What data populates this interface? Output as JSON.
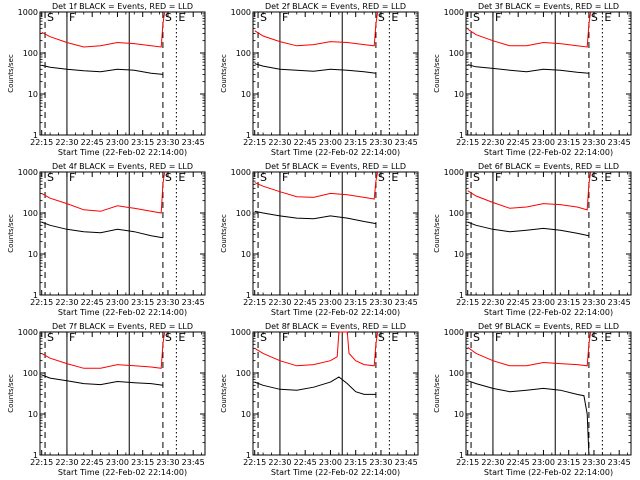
{
  "colors": {
    "background": "#ffffff",
    "events": "#000000",
    "lld": "#ff0000",
    "axes": "#000000"
  },
  "chart_data": [
    {
      "type": "line",
      "title": "Det 1f BLACK = Events, RED = LLD",
      "xlabel": "Start Time (22-Feb-02 22:14:00)",
      "ylabel": "Counts/sec",
      "yscale": "log",
      "ylim": [
        1,
        1000
      ],
      "xlim": [
        "22:14:00",
        "23:52:00"
      ],
      "x_ticks": [
        "22:15",
        "22:30",
        "22:45",
        "23:00",
        "23:15",
        "23:30",
        "23:45"
      ],
      "y_ticks": [
        "1",
        "10",
        "100",
        "1000"
      ],
      "markers": [
        {
          "label": "S",
          "time": "22:17",
          "style": "dashed"
        },
        {
          "label": "F",
          "time": "22:30",
          "style": "solid"
        },
        {
          "label": "",
          "time": "23:07",
          "style": "solid"
        },
        {
          "label": "S",
          "time": "23:27",
          "style": "dashed"
        },
        {
          "label": "E",
          "time": "23:35",
          "style": "dotted"
        }
      ],
      "series": [
        {
          "name": "BLACK = Events",
          "color": "#000000",
          "x": [
            "22:15",
            "22:20",
            "22:30",
            "22:40",
            "22:50",
            "23:00",
            "23:10",
            "23:20",
            "23:27"
          ],
          "y": [
            50,
            45,
            40,
            37,
            35,
            40,
            38,
            32,
            30
          ]
        },
        {
          "name": "RED = LLD",
          "color": "#ff0000",
          "x": [
            "22:15",
            "22:20",
            "22:30",
            "22:40",
            "22:50",
            "23:00",
            "23:10",
            "23:20",
            "23:26",
            "23:27",
            "23:28"
          ],
          "y": [
            320,
            250,
            180,
            140,
            150,
            180,
            170,
            150,
            140,
            500,
            1000
          ]
        }
      ]
    },
    {
      "type": "line",
      "title": "Det 2f BLACK = Events, RED = LLD",
      "xlabel": "Start Time (22-Feb-02 22:14:00)",
      "ylabel": "Counts/sec",
      "yscale": "log",
      "ylim": [
        1,
        1000
      ],
      "xlim": [
        "22:14:00",
        "23:52:00"
      ],
      "x_ticks": [
        "22:15",
        "22:30",
        "22:45",
        "23:00",
        "23:15",
        "23:30",
        "23:45"
      ],
      "y_ticks": [
        "1",
        "10",
        "100",
        "1000"
      ],
      "markers": [
        {
          "label": "S",
          "time": "22:17",
          "style": "dashed"
        },
        {
          "label": "F",
          "time": "22:30",
          "style": "solid"
        },
        {
          "label": "",
          "time": "23:07",
          "style": "solid"
        },
        {
          "label": "S",
          "time": "23:27",
          "style": "dashed"
        },
        {
          "label": "E",
          "time": "23:35",
          "style": "dotted"
        }
      ],
      "series": [
        {
          "name": "BLACK = Events",
          "color": "#000000",
          "x": [
            "22:15",
            "22:20",
            "22:30",
            "22:40",
            "22:50",
            "23:00",
            "23:10",
            "23:20",
            "23:27"
          ],
          "y": [
            55,
            48,
            40,
            38,
            36,
            40,
            38,
            35,
            32
          ]
        },
        {
          "name": "RED = LLD",
          "color": "#ff0000",
          "x": [
            "22:15",
            "22:20",
            "22:30",
            "22:40",
            "22:50",
            "23:00",
            "23:10",
            "23:20",
            "23:26",
            "23:27",
            "23:28"
          ],
          "y": [
            350,
            260,
            190,
            150,
            160,
            190,
            180,
            160,
            150,
            500,
            1000
          ]
        }
      ]
    },
    {
      "type": "line",
      "title": "Det 3f BLACK = Events, RED = LLD",
      "xlabel": "Start Time (22-Feb-02 22:14:00)",
      "ylabel": "Counts/sec",
      "yscale": "log",
      "ylim": [
        1,
        1000
      ],
      "xlim": [
        "22:14:00",
        "23:52:00"
      ],
      "x_ticks": [
        "22:15",
        "22:30",
        "22:45",
        "23:00",
        "23:15",
        "23:30",
        "23:45"
      ],
      "y_ticks": [
        "1",
        "10",
        "100",
        "1000"
      ],
      "markers": [
        {
          "label": "S",
          "time": "22:17",
          "style": "dashed"
        },
        {
          "label": "F",
          "time": "22:30",
          "style": "solid"
        },
        {
          "label": "",
          "time": "23:07",
          "style": "solid"
        },
        {
          "label": "S",
          "time": "23:27",
          "style": "dashed"
        },
        {
          "label": "E",
          "time": "23:35",
          "style": "dotted"
        }
      ],
      "series": [
        {
          "name": "BLACK = Events",
          "color": "#000000",
          "x": [
            "22:15",
            "22:20",
            "22:30",
            "22:40",
            "22:50",
            "23:00",
            "23:10",
            "23:20",
            "23:27"
          ],
          "y": [
            52,
            46,
            42,
            38,
            35,
            40,
            38,
            34,
            32
          ]
        },
        {
          "name": "RED = LLD",
          "color": "#ff0000",
          "x": [
            "22:15",
            "22:20",
            "22:30",
            "22:40",
            "22:50",
            "23:00",
            "23:10",
            "23:20",
            "23:26",
            "23:27",
            "23:28"
          ],
          "y": [
            380,
            280,
            200,
            150,
            150,
            180,
            170,
            150,
            140,
            500,
            1000
          ]
        }
      ]
    },
    {
      "type": "line",
      "title": "Det 4f BLACK = Events, RED = LLD",
      "xlabel": "Start Time (22-Feb-02 22:14:00)",
      "ylabel": "Counts/sec",
      "yscale": "log",
      "ylim": [
        1,
        1000
      ],
      "xlim": [
        "22:14:00",
        "23:52:00"
      ],
      "x_ticks": [
        "22:15",
        "22:30",
        "22:45",
        "23:00",
        "23:15",
        "23:30",
        "23:45"
      ],
      "y_ticks": [
        "1",
        "10",
        "100",
        "1000"
      ],
      "markers": [
        {
          "label": "S",
          "time": "22:17",
          "style": "dashed"
        },
        {
          "label": "F",
          "time": "22:30",
          "style": "solid"
        },
        {
          "label": "",
          "time": "23:07",
          "style": "solid"
        },
        {
          "label": "S",
          "time": "23:27",
          "style": "dashed"
        },
        {
          "label": "E",
          "time": "23:35",
          "style": "dotted"
        }
      ],
      "series": [
        {
          "name": "BLACK = Events",
          "color": "#000000",
          "x": [
            "22:15",
            "22:20",
            "22:30",
            "22:40",
            "22:50",
            "23:00",
            "23:10",
            "23:20",
            "23:27"
          ],
          "y": [
            60,
            50,
            40,
            35,
            33,
            40,
            35,
            28,
            25
          ]
        },
        {
          "name": "RED = LLD",
          "color": "#ff0000",
          "x": [
            "22:15",
            "22:20",
            "22:30",
            "22:40",
            "22:50",
            "23:00",
            "23:10",
            "23:20",
            "23:26",
            "23:27",
            "23:28"
          ],
          "y": [
            300,
            230,
            170,
            120,
            110,
            150,
            130,
            110,
            100,
            500,
            1000
          ]
        }
      ]
    },
    {
      "type": "line",
      "title": "Det 5f BLACK = Events, RED = LLD",
      "xlabel": "Start Time (22-Feb-02 22:14:00)",
      "ylabel": "Counts/sec",
      "yscale": "log",
      "ylim": [
        1,
        1000
      ],
      "xlim": [
        "22:14:00",
        "23:52:00"
      ],
      "x_ticks": [
        "22:15",
        "22:30",
        "22:45",
        "23:00",
        "23:15",
        "23:30",
        "23:45"
      ],
      "y_ticks": [
        "1",
        "10",
        "100",
        "1000"
      ],
      "markers": [
        {
          "label": "S",
          "time": "22:17",
          "style": "dashed"
        },
        {
          "label": "F",
          "time": "22:30",
          "style": "solid"
        },
        {
          "label": "",
          "time": "23:07",
          "style": "solid"
        },
        {
          "label": "S",
          "time": "23:27",
          "style": "dashed"
        },
        {
          "label": "E",
          "time": "23:35",
          "style": "dotted"
        }
      ],
      "series": [
        {
          "name": "BLACK = Events",
          "color": "#000000",
          "x": [
            "22:15",
            "22:20",
            "22:30",
            "22:40",
            "22:50",
            "23:00",
            "23:10",
            "23:20",
            "23:27"
          ],
          "y": [
            110,
            100,
            85,
            75,
            72,
            85,
            75,
            62,
            55
          ]
        },
        {
          "name": "RED = LLD",
          "color": "#ff0000",
          "x": [
            "22:15",
            "22:20",
            "22:30",
            "22:40",
            "22:50",
            "23:00",
            "23:10",
            "23:20",
            "23:26",
            "23:27",
            "23:28"
          ],
          "y": [
            550,
            450,
            330,
            250,
            240,
            300,
            280,
            240,
            220,
            600,
            1000
          ]
        }
      ]
    },
    {
      "type": "line",
      "title": "Det 6f BLACK = Events, RED = LLD",
      "xlabel": "Start Time (22-Feb-02 22:14:00)",
      "ylabel": "Counts/sec",
      "yscale": "log",
      "ylim": [
        1,
        1000
      ],
      "xlim": [
        "22:14:00",
        "23:52:00"
      ],
      "x_ticks": [
        "22:15",
        "22:30",
        "22:45",
        "23:00",
        "23:15",
        "23:30",
        "23:45"
      ],
      "y_ticks": [
        "1",
        "10",
        "100",
        "1000"
      ],
      "markers": [
        {
          "label": "S",
          "time": "22:17",
          "style": "dashed"
        },
        {
          "label": "F",
          "time": "22:30",
          "style": "solid"
        },
        {
          "label": "",
          "time": "23:07",
          "style": "solid"
        },
        {
          "label": "S",
          "time": "23:27",
          "style": "dashed"
        },
        {
          "label": "E",
          "time": "23:35",
          "style": "dotted"
        }
      ],
      "series": [
        {
          "name": "BLACK = Events",
          "color": "#000000",
          "x": [
            "22:15",
            "22:20",
            "22:30",
            "22:40",
            "22:50",
            "23:00",
            "23:10",
            "23:20",
            "23:27"
          ],
          "y": [
            60,
            50,
            40,
            35,
            38,
            42,
            38,
            32,
            28
          ]
        },
        {
          "name": "RED = LLD",
          "color": "#ff0000",
          "x": [
            "22:15",
            "22:20",
            "22:30",
            "22:40",
            "22:50",
            "23:00",
            "23:10",
            "23:20",
            "23:26",
            "23:27",
            "23:28"
          ],
          "y": [
            350,
            260,
            180,
            130,
            140,
            170,
            160,
            140,
            120,
            500,
            1000
          ]
        }
      ]
    },
    {
      "type": "line",
      "title": "Det 7f BLACK = Events, RED = LLD",
      "xlabel": "Start Time (22-Feb-02 22:14:00)",
      "ylabel": "Counts/sec",
      "yscale": "log",
      "ylim": [
        1,
        1000
      ],
      "xlim": [
        "22:14:00",
        "23:52:00"
      ],
      "x_ticks": [
        "22:15",
        "22:30",
        "22:45",
        "23:00",
        "23:15",
        "23:30",
        "23:45"
      ],
      "y_ticks": [
        "1",
        "10",
        "100",
        "1000"
      ],
      "markers": [
        {
          "label": "S",
          "time": "22:17",
          "style": "dashed"
        },
        {
          "label": "F",
          "time": "22:30",
          "style": "solid"
        },
        {
          "label": "",
          "time": "23:07",
          "style": "solid"
        },
        {
          "label": "S",
          "time": "23:27",
          "style": "dashed"
        },
        {
          "label": "E",
          "time": "23:35",
          "style": "dotted"
        }
      ],
      "series": [
        {
          "name": "BLACK = Events",
          "color": "#000000",
          "x": [
            "22:15",
            "22:20",
            "22:30",
            "22:40",
            "22:50",
            "23:00",
            "23:10",
            "23:20",
            "23:27"
          ],
          "y": [
            90,
            75,
            65,
            55,
            52,
            62,
            58,
            55,
            50
          ]
        },
        {
          "name": "RED = LLD",
          "color": "#ff0000",
          "x": [
            "22:15",
            "22:20",
            "22:30",
            "22:40",
            "22:50",
            "23:00",
            "23:10",
            "23:20",
            "23:26",
            "23:27",
            "23:28"
          ],
          "y": [
            300,
            230,
            170,
            130,
            130,
            160,
            150,
            140,
            130,
            500,
            1000
          ]
        }
      ]
    },
    {
      "type": "line",
      "title": "Det 8f BLACK = Events, RED = LLD",
      "xlabel": "Start Time (22-Feb-02 22:14:00)",
      "ylabel": "Counts/sec",
      "yscale": "log",
      "ylim": [
        1,
        1000
      ],
      "xlim": [
        "22:14:00",
        "23:52:00"
      ],
      "x_ticks": [
        "22:15",
        "22:30",
        "22:45",
        "23:00",
        "23:15",
        "23:30",
        "23:45"
      ],
      "y_ticks": [
        "1",
        "10",
        "100",
        "1000"
      ],
      "markers": [
        {
          "label": "S",
          "time": "22:17",
          "style": "dashed"
        },
        {
          "label": "F",
          "time": "22:30",
          "style": "solid"
        },
        {
          "label": "",
          "time": "23:07",
          "style": "solid"
        },
        {
          "label": "S",
          "time": "23:27",
          "style": "dashed"
        },
        {
          "label": "E",
          "time": "23:35",
          "style": "dotted"
        }
      ],
      "series": [
        {
          "name": "BLACK = Events",
          "color": "#000000",
          "x": [
            "22:15",
            "22:20",
            "22:30",
            "22:40",
            "22:50",
            "23:00",
            "23:05",
            "23:10",
            "23:15",
            "23:20",
            "23:27"
          ],
          "y": [
            60,
            50,
            40,
            38,
            45,
            60,
            80,
            55,
            35,
            30,
            30
          ]
        },
        {
          "name": "RED = LLD",
          "color": "#ff0000",
          "x": [
            "22:15",
            "22:20",
            "22:30",
            "22:40",
            "22:50",
            "23:00",
            "23:04",
            "23:05",
            "23:10",
            "23:11",
            "23:15",
            "23:20",
            "23:26",
            "23:27",
            "23:28"
          ],
          "y": [
            400,
            300,
            200,
            150,
            160,
            200,
            250,
            1000,
            1000,
            300,
            200,
            160,
            150,
            500,
            1000
          ]
        }
      ]
    },
    {
      "type": "line",
      "title": "Det 9f BLACK = Events, RED = LLD",
      "xlabel": "Start Time (22-Feb-02 22:14:00)",
      "ylabel": "Counts/sec",
      "yscale": "log",
      "ylim": [
        1,
        1000
      ],
      "xlim": [
        "22:14:00",
        "23:52:00"
      ],
      "x_ticks": [
        "22:15",
        "22:30",
        "22:45",
        "23:00",
        "23:15",
        "23:30",
        "23:45"
      ],
      "y_ticks": [
        "1",
        "10",
        "100",
        "1000"
      ],
      "markers": [
        {
          "label": "S",
          "time": "22:17",
          "style": "dashed"
        },
        {
          "label": "F",
          "time": "22:30",
          "style": "solid"
        },
        {
          "label": "",
          "time": "23:07",
          "style": "solid"
        },
        {
          "label": "S",
          "time": "23:27",
          "style": "dashed"
        },
        {
          "label": "E",
          "time": "23:35",
          "style": "dotted"
        }
      ],
      "series": [
        {
          "name": "BLACK = Events",
          "color": "#000000",
          "x": [
            "22:15",
            "22:20",
            "22:30",
            "22:40",
            "22:50",
            "23:00",
            "23:10",
            "23:20",
            "23:24",
            "23:26",
            "23:27"
          ],
          "y": [
            65,
            55,
            42,
            35,
            38,
            42,
            38,
            30,
            28,
            10,
            1
          ]
        },
        {
          "name": "RED = LLD",
          "color": "#ff0000",
          "x": [
            "22:15",
            "22:20",
            "22:30",
            "22:40",
            "22:50",
            "23:00",
            "23:10",
            "23:20",
            "23:26",
            "23:27",
            "23:28"
          ],
          "y": [
            420,
            300,
            200,
            150,
            150,
            180,
            170,
            160,
            150,
            500,
            1000
          ]
        }
      ]
    }
  ]
}
